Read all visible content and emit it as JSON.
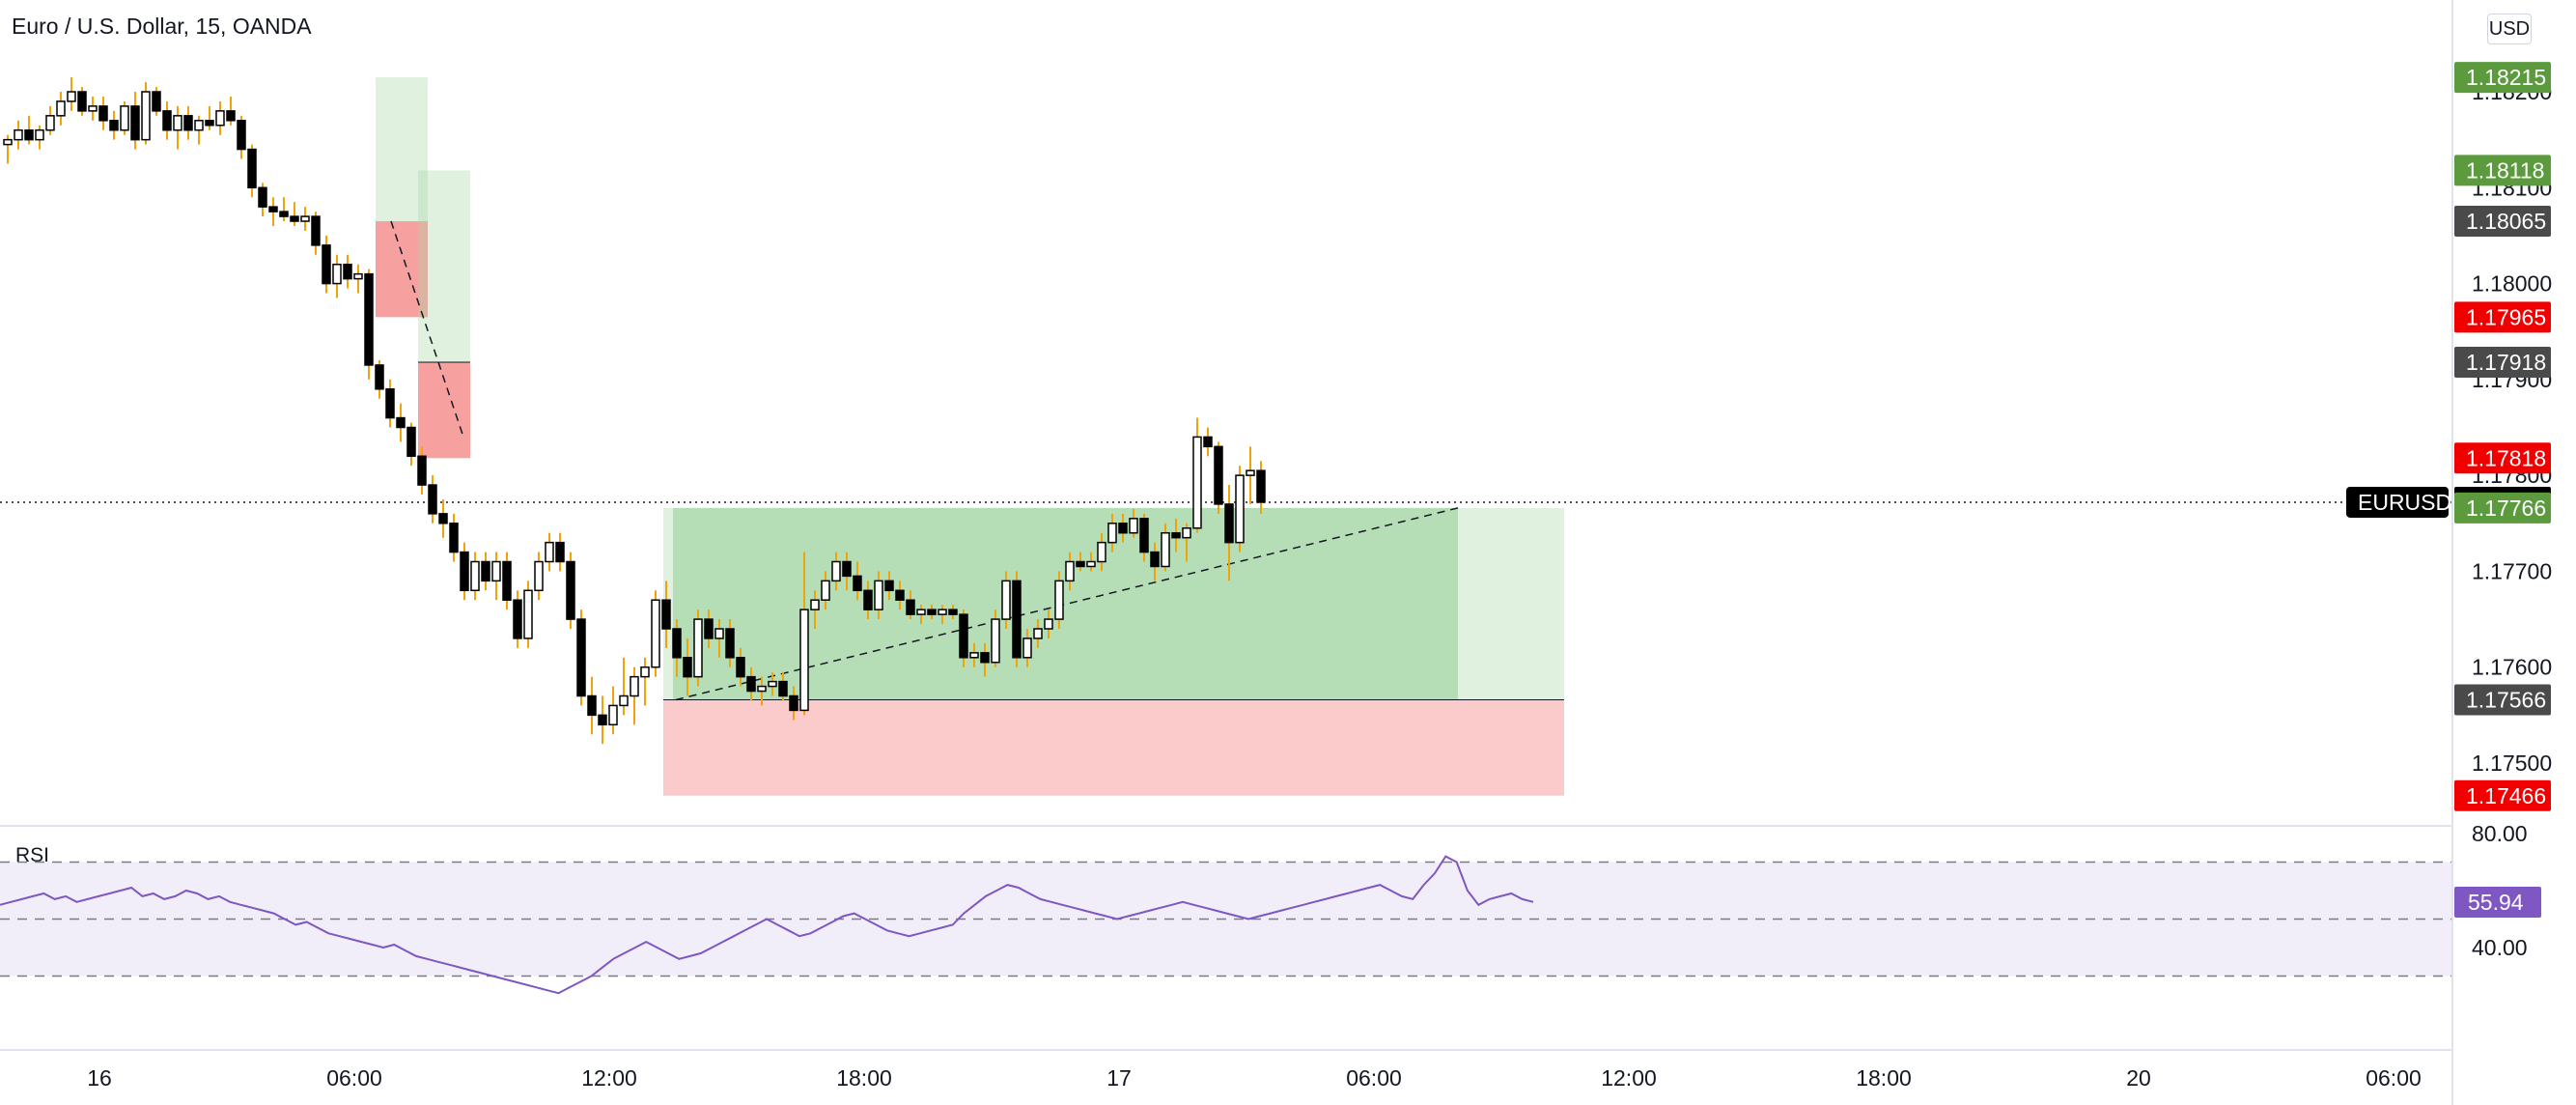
{
  "header": {
    "symbol_title": "Euro / U.S. Dollar, 15, OANDA",
    "currency_button": "USD"
  },
  "price_axis": {
    "ticks": [
      "1.18200",
      "1.18100",
      "1.18000",
      "1.17900",
      "1.17800",
      "1.17700",
      "1.17600",
      "1.17500"
    ],
    "tags": [
      {
        "label": "1.18215",
        "color": "#5b9b3e"
      },
      {
        "label": "1.18118",
        "color": "#5b9b3e"
      },
      {
        "label": "1.18065",
        "color": "#4a4a4a"
      },
      {
        "label": "1.17965",
        "color": "#f00000"
      },
      {
        "label": "1.17918",
        "color": "#4a4a4a"
      },
      {
        "label": "1.17818",
        "color": "#f00000"
      },
      {
        "label": "1.17772",
        "color": "#000000"
      },
      {
        "label": "1.17766",
        "color": "#5b9b3e"
      },
      {
        "label": "1.17566",
        "color": "#4a4a4a"
      },
      {
        "label": "1.17466",
        "color": "#f00000"
      }
    ],
    "last_price_symbol": "EURUSD"
  },
  "rsi": {
    "label": "RSI",
    "ticks": [
      "80.00",
      "40.00"
    ],
    "value_tag": {
      "label": "55.94",
      "color": "#7e57c2"
    }
  },
  "time_axis": {
    "labels": [
      "16",
      "06:00",
      "12:00",
      "18:00",
      "17",
      "06:00",
      "12:00",
      "18:00",
      "20",
      "06:00"
    ]
  },
  "chart_data": {
    "type": "candlestick",
    "title": "Euro / U.S. Dollar, 15, OANDA",
    "symbol": "EURUSD",
    "interval_minutes": 15,
    "last_price": 1.17772,
    "price_range": [
      1.1745,
      1.1824
    ],
    "candles": [
      [
        1.18145,
        1.18155,
        1.18125,
        1.1815
      ],
      [
        1.1815,
        1.1817,
        1.1814,
        1.1816
      ],
      [
        1.1816,
        1.18175,
        1.18145,
        1.1815
      ],
      [
        1.1815,
        1.18165,
        1.1814,
        1.1816
      ],
      [
        1.1816,
        1.18185,
        1.18155,
        1.18175
      ],
      [
        1.18175,
        1.182,
        1.18165,
        1.1819
      ],
      [
        1.1819,
        1.18215,
        1.1818,
        1.182
      ],
      [
        1.182,
        1.18205,
        1.18175,
        1.1818
      ],
      [
        1.1818,
        1.18195,
        1.1817,
        1.18185
      ],
      [
        1.18185,
        1.18195,
        1.1816,
        1.1817
      ],
      [
        1.1817,
        1.1818,
        1.1815,
        1.1816
      ],
      [
        1.1816,
        1.1819,
        1.18155,
        1.18185
      ],
      [
        1.18185,
        1.182,
        1.1814,
        1.1815
      ],
      [
        1.1815,
        1.1821,
        1.18145,
        1.182
      ],
      [
        1.182,
        1.18205,
        1.18175,
        1.1818
      ],
      [
        1.1818,
        1.1819,
        1.1815,
        1.1816
      ],
      [
        1.1816,
        1.18185,
        1.1814,
        1.18175
      ],
      [
        1.18175,
        1.18185,
        1.1815,
        1.1816
      ],
      [
        1.1816,
        1.18175,
        1.18145,
        1.1817
      ],
      [
        1.1817,
        1.18185,
        1.1816,
        1.18165
      ],
      [
        1.18165,
        1.1819,
        1.18155,
        1.1818
      ],
      [
        1.1818,
        1.18195,
        1.18165,
        1.1817
      ],
      [
        1.1817,
        1.18175,
        1.1813,
        1.1814
      ],
      [
        1.1814,
        1.18145,
        1.1809,
        1.181
      ],
      [
        1.181,
        1.18105,
        1.1807,
        1.1808
      ],
      [
        1.1808,
        1.1809,
        1.1806,
        1.18075
      ],
      [
        1.18075,
        1.1809,
        1.18065,
        1.1807
      ],
      [
        1.1807,
        1.18085,
        1.1806,
        1.18065
      ],
      [
        1.18065,
        1.1808,
        1.18055,
        1.1807
      ],
      [
        1.1807,
        1.18075,
        1.1803,
        1.1804
      ],
      [
        1.1804,
        1.1805,
        1.1799,
        1.18
      ],
      [
        1.18,
        1.1803,
        1.17985,
        1.1802
      ],
      [
        1.1802,
        1.1803,
        1.17995,
        1.18005
      ],
      [
        1.18005,
        1.1802,
        1.1799,
        1.1801
      ],
      [
        1.1801,
        1.18015,
        1.179,
        1.17915
      ],
      [
        1.17915,
        1.1792,
        1.1788,
        1.1789
      ],
      [
        1.1789,
        1.179,
        1.1785,
        1.1786
      ],
      [
        1.1786,
        1.17875,
        1.17835,
        1.1785
      ],
      [
        1.1785,
        1.17855,
        1.1781,
        1.1782
      ],
      [
        1.1782,
        1.1783,
        1.1778,
        1.1779
      ],
      [
        1.1779,
        1.178,
        1.1775,
        1.1776
      ],
      [
        1.1776,
        1.17775,
        1.17735,
        1.1775
      ],
      [
        1.1775,
        1.1776,
        1.1771,
        1.1772
      ],
      [
        1.1772,
        1.1773,
        1.1767,
        1.1768
      ],
      [
        1.1768,
        1.1772,
        1.1767,
        1.1771
      ],
      [
        1.1771,
        1.1772,
        1.1768,
        1.1769
      ],
      [
        1.1769,
        1.1772,
        1.1767,
        1.1771
      ],
      [
        1.1771,
        1.1772,
        1.1766,
        1.1767
      ],
      [
        1.1767,
        1.1768,
        1.1762,
        1.1763
      ],
      [
        1.1763,
        1.1769,
        1.1762,
        1.1768
      ],
      [
        1.1768,
        1.1772,
        1.1767,
        1.1771
      ],
      [
        1.1771,
        1.1774,
        1.177,
        1.1773
      ],
      [
        1.1773,
        1.1774,
        1.177,
        1.1771
      ],
      [
        1.1771,
        1.1772,
        1.1764,
        1.1765
      ],
      [
        1.1765,
        1.1766,
        1.1756,
        1.1757
      ],
      [
        1.1757,
        1.1759,
        1.1753,
        1.1755
      ],
      [
        1.1755,
        1.1757,
        1.1752,
        1.1754
      ],
      [
        1.1754,
        1.1758,
        1.1753,
        1.1756
      ],
      [
        1.1756,
        1.1761,
        1.1755,
        1.1757
      ],
      [
        1.1757,
        1.176,
        1.1754,
        1.1759
      ],
      [
        1.1759,
        1.1761,
        1.1756,
        1.176
      ],
      [
        1.176,
        1.1768,
        1.1759,
        1.1767
      ],
      [
        1.1767,
        1.1769,
        1.1762,
        1.1764
      ],
      [
        1.1764,
        1.1765,
        1.1759,
        1.1761
      ],
      [
        1.1761,
        1.1763,
        1.1757,
        1.1759
      ],
      [
        1.1759,
        1.1766,
        1.1758,
        1.1765
      ],
      [
        1.1765,
        1.1766,
        1.1762,
        1.1763
      ],
      [
        1.1763,
        1.1765,
        1.1761,
        1.1764
      ],
      [
        1.1764,
        1.1765,
        1.176,
        1.1761
      ],
      [
        1.1761,
        1.1762,
        1.1758,
        1.1759
      ],
      [
        1.1759,
        1.176,
        1.17565,
        1.17575
      ],
      [
        1.17575,
        1.1759,
        1.1756,
        1.1758
      ],
      [
        1.1758,
        1.17595,
        1.1757,
        1.17585
      ],
      [
        1.17585,
        1.17595,
        1.17565,
        1.1757
      ],
      [
        1.1757,
        1.1758,
        1.17545,
        1.17555
      ],
      [
        1.17555,
        1.1772,
        1.1755,
        1.1766
      ],
      [
        1.1766,
        1.1768,
        1.1764,
        1.1767
      ],
      [
        1.1767,
        1.177,
        1.1766,
        1.1769
      ],
      [
        1.1769,
        1.1772,
        1.1768,
        1.1771
      ],
      [
        1.1771,
        1.1772,
        1.1768,
        1.17695
      ],
      [
        1.17695,
        1.1771,
        1.1767,
        1.1768
      ],
      [
        1.1768,
        1.1769,
        1.1765,
        1.1766
      ],
      [
        1.1766,
        1.177,
        1.1765,
        1.1769
      ],
      [
        1.1769,
        1.177,
        1.1767,
        1.1768
      ],
      [
        1.1768,
        1.1769,
        1.1766,
        1.1767
      ],
      [
        1.1767,
        1.1768,
        1.1765,
        1.17655
      ],
      [
        1.17655,
        1.17665,
        1.17645,
        1.1766
      ],
      [
        1.1766,
        1.17665,
        1.1765,
        1.17655
      ],
      [
        1.17655,
        1.17665,
        1.17645,
        1.1766
      ],
      [
        1.1766,
        1.17665,
        1.1765,
        1.17655
      ],
      [
        1.17655,
        1.1766,
        1.176,
        1.1761
      ],
      [
        1.1761,
        1.17625,
        1.176,
        1.17615
      ],
      [
        1.17615,
        1.17625,
        1.1759,
        1.17605
      ],
      [
        1.17605,
        1.1766,
        1.176,
        1.1765
      ],
      [
        1.1765,
        1.177,
        1.1764,
        1.1769
      ],
      [
        1.1769,
        1.177,
        1.176,
        1.1761
      ],
      [
        1.1761,
        1.1764,
        1.176,
        1.1763
      ],
      [
        1.1763,
        1.1765,
        1.1762,
        1.1764
      ],
      [
        1.1764,
        1.1766,
        1.1763,
        1.1765
      ],
      [
        1.1765,
        1.177,
        1.1764,
        1.1769
      ],
      [
        1.1769,
        1.1772,
        1.1768,
        1.1771
      ],
      [
        1.1771,
        1.1772,
        1.177,
        1.17705
      ],
      [
        1.17705,
        1.1772,
        1.177,
        1.1771
      ],
      [
        1.1771,
        1.1774,
        1.177,
        1.1773
      ],
      [
        1.1773,
        1.1776,
        1.1772,
        1.1775
      ],
      [
        1.1775,
        1.1776,
        1.1773,
        1.1774
      ],
      [
        1.1774,
        1.17765,
        1.17735,
        1.17755
      ],
      [
        1.17755,
        1.1776,
        1.1771,
        1.1772
      ],
      [
        1.1772,
        1.1773,
        1.1769,
        1.17705
      ],
      [
        1.17705,
        1.1775,
        1.177,
        1.1774
      ],
      [
        1.1774,
        1.17755,
        1.1772,
        1.17735
      ],
      [
        1.17735,
        1.1775,
        1.1771,
        1.17745
      ],
      [
        1.17745,
        1.1786,
        1.1774,
        1.1784
      ],
      [
        1.1784,
        1.1785,
        1.1782,
        1.1783
      ],
      [
        1.1783,
        1.17835,
        1.1776,
        1.1777
      ],
      [
        1.1777,
        1.1779,
        1.1769,
        1.1773
      ],
      [
        1.1773,
        1.1781,
        1.1772,
        1.178
      ],
      [
        1.178,
        1.1783,
        1.1777,
        1.17805
      ],
      [
        1.17805,
        1.17815,
        1.1776,
        1.17772
      ]
    ],
    "positions": [
      {
        "type": "short",
        "entry": 1.18065,
        "target": 1.17965,
        "stop": 1.18215
      },
      {
        "type": "short",
        "entry": 1.17918,
        "target": 1.17818,
        "stop": 1.18118
      },
      {
        "type": "long",
        "entry": 1.17766,
        "target_lower": 1.17566,
        "stop": 1.17466
      }
    ],
    "rsi_indicator": {
      "name": "RSI",
      "upper_band": 70,
      "middle_band": 50,
      "lower_band": 30,
      "last_value": 55.94,
      "axis_ticks": [
        80,
        40
      ],
      "values": [
        55,
        56,
        57,
        58,
        59,
        57,
        58,
        56,
        57,
        58,
        59,
        60,
        61,
        58,
        59,
        57,
        58,
        60,
        59,
        57,
        58,
        56,
        55,
        54,
        53,
        52,
        50,
        48,
        49,
        47,
        45,
        44,
        43,
        42,
        41,
        40,
        41,
        39,
        37,
        36,
        35,
        34,
        33,
        32,
        31,
        30,
        29,
        28,
        27,
        26,
        25,
        24,
        26,
        28,
        30,
        33,
        36,
        38,
        40,
        42,
        40,
        38,
        36,
        37,
        38,
        40,
        42,
        44,
        46,
        48,
        50,
        48,
        46,
        44,
        45,
        47,
        49,
        51,
        52,
        50,
        48,
        46,
        45,
        44,
        45,
        46,
        47,
        48,
        52,
        55,
        58,
        60,
        62,
        61,
        59,
        57,
        56,
        55,
        54,
        53,
        52,
        51,
        50,
        51,
        52,
        53,
        54,
        55,
        56,
        55,
        54,
        53,
        52,
        51,
        50,
        51,
        52,
        53,
        54,
        55,
        56,
        57,
        58,
        59,
        60,
        61,
        62,
        60,
        58,
        57,
        62,
        66,
        72,
        70,
        60,
        55,
        57,
        58,
        59,
        57,
        56
      ]
    }
  }
}
